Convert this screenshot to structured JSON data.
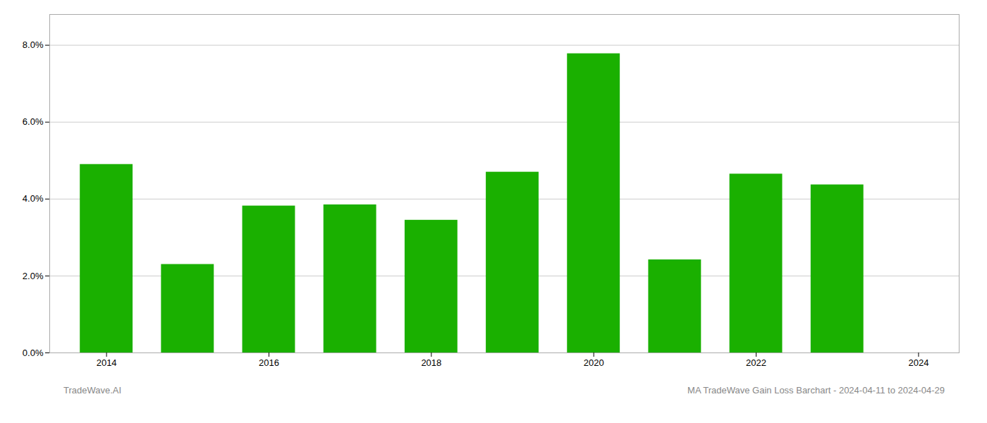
{
  "chart_data": {
    "type": "bar",
    "x": [
      2014,
      2015,
      2016,
      2017,
      2018,
      2019,
      2020,
      2021,
      2022,
      2023
    ],
    "values": [
      0.049,
      0.023,
      0.0382,
      0.0385,
      0.0345,
      0.047,
      0.0778,
      0.0242,
      0.0465,
      0.0437
    ],
    "color": "#1ab000",
    "xlim": [
      2013.3,
      2024.5
    ],
    "xticks": [
      2014,
      2016,
      2018,
      2020,
      2022,
      2024
    ],
    "ylim": [
      0,
      0.088
    ],
    "yticks": [
      {
        "value": 0.0,
        "label": "0.0%"
      },
      {
        "value": 0.02,
        "label": "2.0%"
      },
      {
        "value": 0.04,
        "label": "4.0%"
      },
      {
        "value": 0.06,
        "label": "6.0%"
      },
      {
        "value": 0.08,
        "label": "8.0%"
      }
    ],
    "grid": true,
    "annotations": [
      "TradeWave.AI",
      "MA TradeWave Gain Loss Barchart - 2024-04-11 to 2024-04-29"
    ]
  }
}
